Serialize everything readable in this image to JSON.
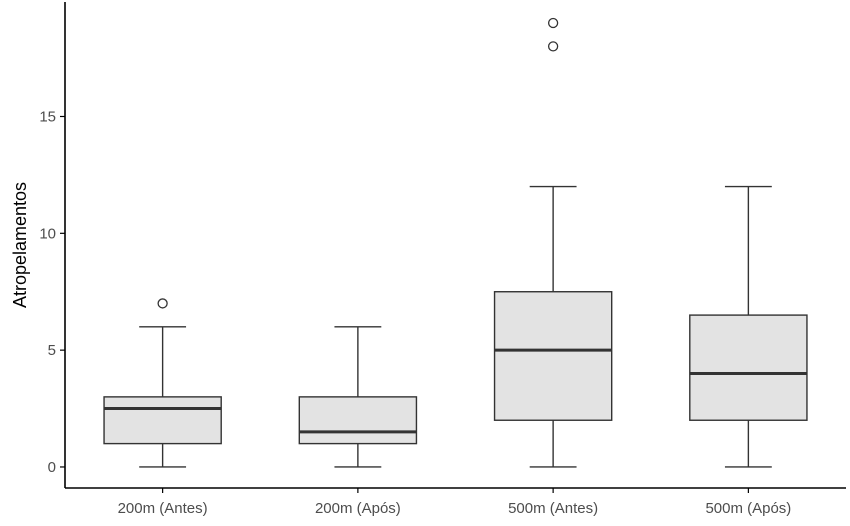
{
  "chart_data": {
    "type": "boxplot",
    "title": "",
    "xlabel": "",
    "ylabel": "Atropelamentos",
    "ylim": [
      -0.9,
      19.9
    ],
    "yticks": [
      0,
      5,
      10,
      15
    ],
    "categories": [
      "200m (Antes)",
      "200m (Após)",
      "500m (Antes)",
      "500m (Após)"
    ],
    "boxes": [
      {
        "label": "200m (Antes)",
        "min": 0,
        "q1": 1,
        "median": 2.5,
        "q3": 3,
        "max": 6,
        "outliers": [
          7
        ]
      },
      {
        "label": "200m (Após)",
        "min": 0,
        "q1": 1,
        "median": 1.5,
        "q3": 3,
        "max": 6,
        "outliers": []
      },
      {
        "label": "500m (Antes)",
        "min": 0,
        "q1": 2,
        "median": 5,
        "q3": 7.5,
        "max": 12,
        "outliers": [
          18,
          19
        ]
      },
      {
        "label": "500m (Após)",
        "min": 0,
        "q1": 2,
        "median": 4,
        "q3": 6.5,
        "max": 12,
        "outliers": []
      }
    ],
    "box_fill": "#e3e3e3",
    "line_color": "#333333",
    "axis_color": "#000000",
    "grid": false
  }
}
